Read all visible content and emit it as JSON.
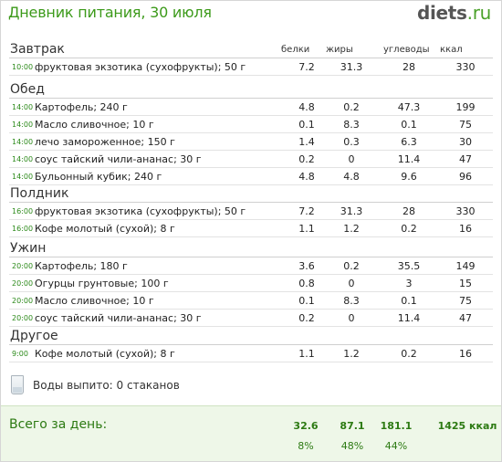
{
  "header": {
    "title": "Дневник питания, 30 июля",
    "logo_name": "diets",
    "logo_tld": ".ru"
  },
  "columns": {
    "protein": "белки",
    "fat": "жиры",
    "carbs": "углеводы",
    "kcal": "ккал"
  },
  "meals": [
    {
      "name": "Завтрак",
      "items": [
        {
          "time": "10:00",
          "food": "фруктовая экзотика (сухофрукты); 50 г",
          "protein": "7.2",
          "fat": "31.3",
          "carbs": "28",
          "kcal": "330"
        }
      ]
    },
    {
      "name": "Обед",
      "items": [
        {
          "time": "14:00",
          "food": "Картофель; 240 г",
          "protein": "4.8",
          "fat": "0.2",
          "carbs": "47.3",
          "kcal": "199"
        },
        {
          "time": "14:00",
          "food": "Масло сливочное; 10 г",
          "protein": "0.1",
          "fat": "8.3",
          "carbs": "0.1",
          "kcal": "75"
        },
        {
          "time": "14:00",
          "food": "лечо замороженное; 150 г",
          "protein": "1.4",
          "fat": "0.3",
          "carbs": "6.3",
          "kcal": "30"
        },
        {
          "time": "14:00",
          "food": "соус тайский чили-ананас; 30 г",
          "protein": "0.2",
          "fat": "0",
          "carbs": "11.4",
          "kcal": "47"
        },
        {
          "time": "14:00",
          "food": "Бульонный кубик; 240 г",
          "protein": "4.8",
          "fat": "4.8",
          "carbs": "9.6",
          "kcal": "96"
        }
      ]
    },
    {
      "name": "Полдник",
      "items": [
        {
          "time": "16:00",
          "food": "фруктовая экзотика (сухофрукты); 50 г",
          "protein": "7.2",
          "fat": "31.3",
          "carbs": "28",
          "kcal": "330"
        },
        {
          "time": "16:00",
          "food": "Кофе молотый (сухой); 8 г",
          "protein": "1.1",
          "fat": "1.2",
          "carbs": "0.2",
          "kcal": "16"
        }
      ]
    },
    {
      "name": "Ужин",
      "items": [
        {
          "time": "20:00",
          "food": "Картофель; 180 г",
          "protein": "3.6",
          "fat": "0.2",
          "carbs": "35.5",
          "kcal": "149"
        },
        {
          "time": "20:00",
          "food": "Огурцы грунтовые; 100 г",
          "protein": "0.8",
          "fat": "0",
          "carbs": "3",
          "kcal": "15"
        },
        {
          "time": "20:00",
          "food": "Масло сливочное; 10 г",
          "protein": "0.1",
          "fat": "8.3",
          "carbs": "0.1",
          "kcal": "75"
        },
        {
          "time": "20:00",
          "food": "соус тайский чили-ананас; 30 г",
          "protein": "0.2",
          "fat": "0",
          "carbs": "11.4",
          "kcal": "47"
        }
      ]
    },
    {
      "name": "Другое",
      "items": [
        {
          "time": "9:00",
          "food": "Кофе молотый (сухой); 8 г",
          "protein": "1.1",
          "fat": "1.2",
          "carbs": "0.2",
          "kcal": "16"
        }
      ]
    }
  ],
  "water": {
    "text": "Воды выпито: 0 стаканов",
    "icon": "glass-icon"
  },
  "totals": {
    "label": "Всего за день:",
    "protein": "32.6",
    "fat": "87.1",
    "carbs": "181.1",
    "kcal": "1425 ккал",
    "protein_pct": "8%",
    "fat_pct": "48%",
    "carbs_pct": "44%"
  },
  "colors": {
    "accent": "#3c9a1a",
    "total_bg": "#eef7e8"
  }
}
